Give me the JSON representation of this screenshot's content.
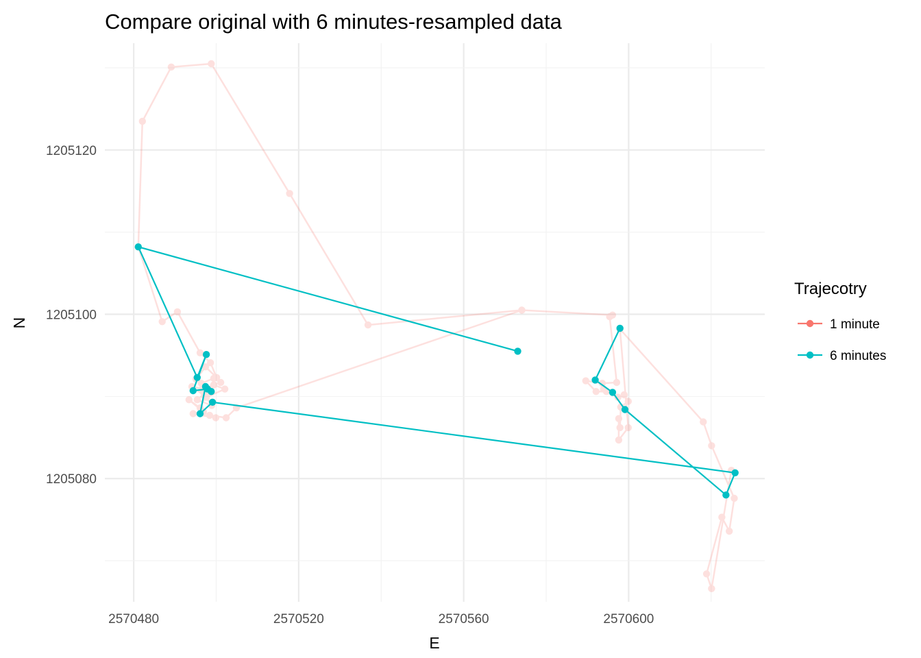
{
  "chart_data": {
    "type": "line",
    "title": "Compare original with 6 minutes-resampled data",
    "xlabel": "E",
    "ylabel": "N",
    "xlim": [
      2570473,
      2570633
    ],
    "ylim": [
      1205065,
      1205133
    ],
    "x_ticks": [
      2570480,
      2570520,
      2570560,
      2570600
    ],
    "x_tick_labels": [
      "2570480",
      "2570520",
      "2570560",
      "2570600"
    ],
    "y_ticks": [
      1205080,
      1205100,
      1205120
    ],
    "y_tick_labels": [
      "1205080",
      "1205100",
      "1205120"
    ],
    "grid": true,
    "legend": {
      "title": "Trajecotry",
      "position": "right"
    },
    "series": [
      {
        "name": "1 minute",
        "color": "#F8766D",
        "opacity": 0.22,
        "x": [
          2570574.1,
          2570536.8,
          2570517.8,
          2570498.8,
          2570489.1,
          2570482.1,
          2570481.1,
          2570486.9,
          2570490.6,
          2570496.1,
          2570498.6,
          2570500.1,
          2570497.4,
          2570495.1,
          2570496.4,
          2570499.4,
          2570501.1,
          2570496.6,
          2570494.1,
          2570497.1,
          2570499.4,
          2570502.1,
          2570497.6,
          2570498.9,
          2570495.4,
          2570497.9,
          2570496.1,
          2570493.4,
          2570496.9,
          2570494.4,
          2570499.9,
          2570498.4,
          2570502.4,
          2570504.9,
          2570574.1,
          2570596.1,
          2570595.4,
          2570597.1,
          2570593.6,
          2570589.6,
          2570592.1,
          2570594.6,
          2570593.9,
          2570597.4,
          2570598.9,
          2570599.9,
          2570598.1,
          2570597.9,
          2570597.6,
          2570597.6,
          2570599.9,
          2570597.9,
          2570618.1,
          2570620.1,
          2570625.6,
          2570624.4,
          2570622.6,
          2570618.9,
          2570620.1,
          2570624.9
        ],
        "y": [
          1205100.5,
          1205098.7,
          1205114.7,
          1205130.5,
          1205130.1,
          1205123.5,
          1205108.2,
          1205099.1,
          1205100.3,
          1205095.3,
          1205094.1,
          1205092.3,
          1205093.6,
          1205092.1,
          1205091.6,
          1205092.2,
          1205091.7,
          1205090.9,
          1205091.2,
          1205090.1,
          1205091.4,
          1205090.9,
          1205089.9,
          1205088.9,
          1205089.6,
          1205090.6,
          1205088.6,
          1205089.6,
          1205088.1,
          1205087.9,
          1205087.4,
          1205087.7,
          1205087.4,
          1205088.6,
          1205100.5,
          1205099.9,
          1205099.7,
          1205091.7,
          1205091.6,
          1205091.9,
          1205090.6,
          1205090.6,
          1205090.9,
          1205089.9,
          1205090.2,
          1205089.4,
          1205088.7,
          1205086.2,
          1205087.3,
          1205084.7,
          1205086.2,
          1205098.2,
          1205086.9,
          1205084.0,
          1205077.6,
          1205073.6,
          1205075.3,
          1205068.4,
          1205066.6,
          1205081.0
        ]
      },
      {
        "name": "6 minutes",
        "color": "#00BFC4",
        "opacity": 1,
        "x": [
          2570573.1,
          2570481.1,
          2570495.4,
          2570497.6,
          2570494.4,
          2570497.9,
          2570498.8,
          2570497.4,
          2570496.1,
          2570499.1,
          2570625.8,
          2570623.6,
          2570599.1,
          2570596.1,
          2570591.9,
          2570597.9
        ],
        "y": [
          1205095.5,
          1205108.2,
          1205092.3,
          1205095.1,
          1205090.7,
          1205090.9,
          1205090.6,
          1205091.2,
          1205087.9,
          1205089.3,
          1205080.7,
          1205078.0,
          1205088.4,
          1205090.5,
          1205092.0,
          1205098.3
        ]
      }
    ]
  }
}
